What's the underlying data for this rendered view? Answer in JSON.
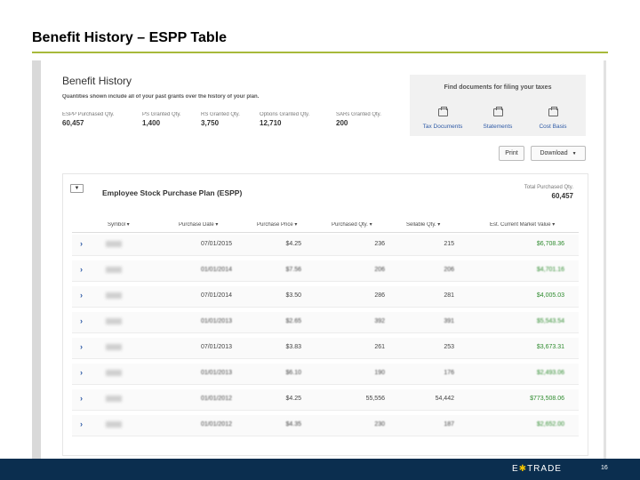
{
  "slide": {
    "title": "Benefit History – ESPP Table",
    "page_number": "16"
  },
  "benefit_history": {
    "title": "Benefit History",
    "subtitle": "Quantities shown include all of your past grants over the history of your plan.",
    "quantities": [
      {
        "label": "ESPP Purchased Qty.",
        "value": "60,457"
      },
      {
        "label": "PS Granted Qty.",
        "value": "1,400"
      },
      {
        "label": "RS Granted Qty.",
        "value": "3,750"
      },
      {
        "label": "Options Granted Qty.",
        "value": "12,710"
      },
      {
        "label": "SARs Granted Qty.",
        "value": "200"
      }
    ]
  },
  "documents": {
    "title": "Find documents for filing your taxes",
    "items": [
      {
        "label": "Tax Documents",
        "icon": "inbox-icon"
      },
      {
        "label": "Statements",
        "icon": "inbox-icon"
      },
      {
        "label": "Cost Basis",
        "icon": "inbox-icon"
      }
    ]
  },
  "actions": {
    "print": "Print",
    "download": "Download"
  },
  "espp": {
    "title": "Employee Stock Purchase Plan (ESPP)",
    "total_label": "Total Purchased Qty.",
    "total_value": "60,457",
    "columns": [
      "Symbol ▾",
      "Purchase Date ▾",
      "Purchase Price ▾",
      "Purchased Qty. ▾",
      "Sellable Qty. ▾",
      "Est. Current Market Value ▾"
    ],
    "rows": [
      {
        "date": "07/01/2015",
        "price": "$4.25",
        "purchased": "236",
        "sellable": "215",
        "market_value": "$6,708.36"
      },
      {
        "date": "01/01/2014",
        "price": "$7.56",
        "purchased": "206",
        "sellable": "206",
        "market_value": "$4,701.16"
      },
      {
        "date": "07/01/2014",
        "price": "$3.50",
        "purchased": "286",
        "sellable": "281",
        "market_value": "$4,005.03"
      },
      {
        "date": "01/01/2013",
        "price": "$2.65",
        "purchased": "392",
        "sellable": "391",
        "market_value": "$5,543.54"
      },
      {
        "date": "07/01/2013",
        "price": "$3.83",
        "purchased": "261",
        "sellable": "253",
        "market_value": "$3,673.31"
      },
      {
        "date": "01/01/2013",
        "price": "$6.10",
        "purchased": "190",
        "sellable": "176",
        "market_value": "$2,493.06"
      },
      {
        "date": "01/01/2012",
        "price": "$4.25",
        "purchased": "55,556",
        "sellable": "54,442",
        "market_value": "$773,508.06"
      },
      {
        "date": "01/01/2012",
        "price": "$4.35",
        "purchased": "230",
        "sellable": "187",
        "market_value": "$2,652.00"
      }
    ]
  },
  "footer": {
    "brand_left": "E",
    "brand_star": "✱",
    "brand_right": "TRADE"
  },
  "colors": {
    "accent_rule": "#a7b93a",
    "link": "#2e5aa6",
    "positive": "#2e8b2e",
    "footer_bg": "#0b2e4f"
  }
}
